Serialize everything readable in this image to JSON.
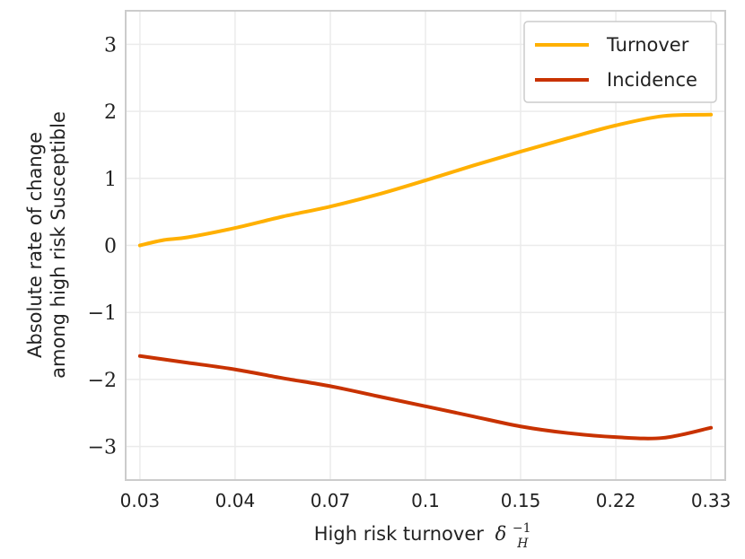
{
  "chart_data": {
    "type": "line",
    "title": "",
    "xlabel": "High risk turnover",
    "xlabel_symbol": "δ",
    "xlabel_subscript": "H",
    "xlabel_superscript": "−1",
    "ylabel_line1": "Absolute rate of change",
    "ylabel_line2": "among high risk Susceptible",
    "x_tick_labels": [
      "0.03",
      "0.04",
      "0.07",
      "0.1",
      "0.15",
      "0.22",
      "0.33"
    ],
    "x_index_range": [
      -0.15,
      6.15
    ],
    "ylim": [
      -3.5,
      3.5
    ],
    "y_ticks": [
      {
        "value": 3,
        "label": "3"
      },
      {
        "value": 2,
        "label": "2"
      },
      {
        "value": 1,
        "label": "1"
      },
      {
        "value": 0,
        "label": "0"
      },
      {
        "value": -1,
        "label": "−1"
      },
      {
        "value": -2,
        "label": "−2"
      },
      {
        "value": -3,
        "label": "−3"
      }
    ],
    "grid": true,
    "legend_position": "top-right",
    "series": [
      {
        "name": "Turnover",
        "color": "#FFB000",
        "x_index": [
          0,
          0.25,
          0.5,
          1,
          1.5,
          2,
          2.5,
          3,
          3.5,
          4,
          4.5,
          5,
          5.5,
          6
        ],
        "values": [
          0.0,
          0.08,
          0.12,
          0.26,
          0.43,
          0.58,
          0.76,
          0.97,
          1.19,
          1.4,
          1.6,
          1.79,
          1.93,
          1.95
        ]
      },
      {
        "name": "Incidence",
        "color": "#C83200",
        "x_index": [
          0,
          0.25,
          0.5,
          1,
          1.5,
          2,
          2.5,
          3,
          3.5,
          4,
          4.5,
          5,
          5.5,
          6
        ],
        "values": [
          -1.65,
          -1.7,
          -1.75,
          -1.85,
          -1.98,
          -2.1,
          -2.25,
          -2.4,
          -2.55,
          -2.7,
          -2.8,
          -2.86,
          -2.87,
          -2.72
        ]
      }
    ]
  }
}
